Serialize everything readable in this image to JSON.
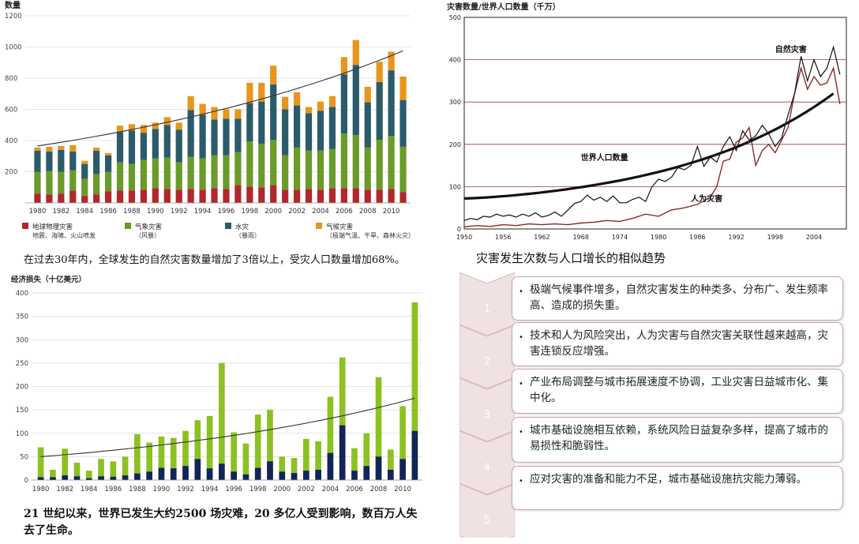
{
  "chart_a": {
    "ylabel": "数量",
    "yticks": [
      200,
      400,
      600,
      800,
      1000,
      1200
    ],
    "ylim": [
      0,
      1200
    ],
    "years": [
      1980,
      1981,
      1982,
      1983,
      1984,
      1985,
      1986,
      1987,
      1988,
      1989,
      1990,
      1991,
      1992,
      1993,
      1994,
      1995,
      1996,
      1997,
      1998,
      1999,
      2000,
      2001,
      2002,
      2003,
      2004,
      2005,
      2006,
      2007,
      2008,
      2009,
      2010,
      2011
    ],
    "xticks": [
      "1980",
      "1982",
      "1984",
      "1986",
      "1988",
      "1990",
      "1992",
      "1994",
      "1996",
      "1998",
      "2000",
      "2002",
      "2004",
      "2006",
      "2008",
      "2010"
    ],
    "colors": {
      "geo": "#b3262c",
      "met": "#6a9a28",
      "hyd": "#2b5b6b",
      "cli": "#e8951e"
    },
    "series": {
      "geo": [
        60,
        55,
        60,
        80,
        45,
        55,
        75,
        80,
        80,
        85,
        95,
        90,
        85,
        90,
        85,
        95,
        90,
        115,
        105,
        100,
        115,
        85,
        85,
        90,
        85,
        95,
        95,
        95,
        85,
        85,
        90,
        70
      ],
      "met": [
        140,
        150,
        140,
        130,
        110,
        130,
        125,
        180,
        170,
        190,
        190,
        200,
        175,
        205,
        200,
        210,
        215,
        210,
        290,
        280,
        290,
        220,
        270,
        245,
        250,
        250,
        350,
        340,
        270,
        320,
        340,
        290
      ],
      "hyd": [
        135,
        125,
        140,
        120,
        95,
        150,
        105,
        195,
        215,
        175,
        190,
        210,
        210,
        300,
        280,
        230,
        235,
        215,
        245,
        270,
        355,
        295,
        270,
        240,
        255,
        270,
        380,
        450,
        290,
        370,
        420,
        300
      ],
      "cli": [
        20,
        30,
        25,
        40,
        20,
        20,
        15,
        40,
        40,
        50,
        40,
        50,
        45,
        90,
        70,
        80,
        60,
        60,
        130,
        120,
        120,
        80,
        85,
        40,
        60,
        70,
        110,
        160,
        100,
        130,
        120,
        150
      ]
    },
    "trend": [
      365,
      975
    ],
    "legend": [
      {
        "key": "geo",
        "name": "地球物理灾害",
        "sub": "地震、海啸、火山喷发"
      },
      {
        "key": "met",
        "name": "气象灾害",
        "sub": "（风暴）"
      },
      {
        "key": "hyd",
        "name": "水灾",
        "sub": "（暴雨）"
      },
      {
        "key": "cli",
        "name": "气候灾害",
        "sub": "（极端气温、干旱、森林火灾）"
      }
    ],
    "caption": "在过去30年内，全球发生的自然灾害数量增加了3倍以上，受灾人口数量增加68%。"
  },
  "chart_b": {
    "title": "灾害数量/世界人口数量（千万）",
    "yticks": [
      0,
      100,
      200,
      300,
      400,
      500
    ],
    "ylim": [
      0,
      500
    ],
    "xticks": [
      "1950",
      "1956",
      "1962",
      "1968",
      "1974",
      "1980",
      "1986",
      "1992",
      "1998",
      "2004"
    ],
    "xlim": [
      1950,
      2009
    ],
    "colors": {
      "natural": "#111111",
      "human": "#8b2a2a",
      "pop": "#111111"
    },
    "natural": [
      [
        1950,
        20
      ],
      [
        1951,
        25
      ],
      [
        1952,
        22
      ],
      [
        1953,
        30
      ],
      [
        1954,
        28
      ],
      [
        1955,
        35
      ],
      [
        1956,
        30
      ],
      [
        1957,
        33
      ],
      [
        1958,
        28
      ],
      [
        1959,
        35
      ],
      [
        1960,
        30
      ],
      [
        1961,
        38
      ],
      [
        1962,
        28
      ],
      [
        1963,
        32
      ],
      [
        1964,
        40
      ],
      [
        1965,
        30
      ],
      [
        1966,
        45
      ],
      [
        1967,
        60
      ],
      [
        1968,
        65
      ],
      [
        1969,
        80
      ],
      [
        1970,
        68
      ],
      [
        1971,
        75
      ],
      [
        1972,
        65
      ],
      [
        1973,
        78
      ],
      [
        1974,
        62
      ],
      [
        1975,
        62
      ],
      [
        1976,
        70
      ],
      [
        1977,
        75
      ],
      [
        1978,
        65
      ],
      [
        1979,
        100
      ],
      [
        1980,
        118
      ],
      [
        1981,
        112
      ],
      [
        1982,
        122
      ],
      [
        1983,
        145
      ],
      [
        1984,
        140
      ],
      [
        1985,
        150
      ],
      [
        1986,
        195
      ],
      [
        1987,
        148
      ],
      [
        1988,
        170
      ],
      [
        1989,
        158
      ],
      [
        1990,
        195
      ],
      [
        1991,
        218
      ],
      [
        1992,
        185
      ],
      [
        1993,
        232
      ],
      [
        1994,
        210
      ],
      [
        1995,
        220
      ],
      [
        1996,
        245
      ],
      [
        1997,
        225
      ],
      [
        1998,
        195
      ],
      [
        1999,
        215
      ],
      [
        2000,
        270
      ],
      [
        2001,
        320
      ],
      [
        2002,
        408
      ],
      [
        2003,
        350
      ],
      [
        2004,
        400
      ],
      [
        2005,
        360
      ],
      [
        2006,
        380
      ],
      [
        2007,
        430
      ],
      [
        2008,
        365
      ]
    ],
    "human": [
      [
        1950,
        5
      ],
      [
        1952,
        8
      ],
      [
        1954,
        6
      ],
      [
        1956,
        10
      ],
      [
        1958,
        8
      ],
      [
        1960,
        12
      ],
      [
        1962,
        10
      ],
      [
        1964,
        12
      ],
      [
        1966,
        10
      ],
      [
        1968,
        14
      ],
      [
        1970,
        16
      ],
      [
        1972,
        20
      ],
      [
        1974,
        18
      ],
      [
        1976,
        25
      ],
      [
        1978,
        35
      ],
      [
        1980,
        30
      ],
      [
        1982,
        45
      ],
      [
        1984,
        50
      ],
      [
        1986,
        58
      ],
      [
        1988,
        75
      ],
      [
        1989,
        100
      ],
      [
        1990,
        160
      ],
      [
        1991,
        165
      ],
      [
        1992,
        205
      ],
      [
        1993,
        215
      ],
      [
        1994,
        240
      ],
      [
        1995,
        150
      ],
      [
        1996,
        185
      ],
      [
        1997,
        200
      ],
      [
        1998,
        180
      ],
      [
        1999,
        210
      ],
      [
        2000,
        240
      ],
      [
        2001,
        320
      ],
      [
        2002,
        380
      ],
      [
        2003,
        330
      ],
      [
        2004,
        360
      ],
      [
        2005,
        340
      ],
      [
        2006,
        345
      ],
      [
        2007,
        380
      ],
      [
        2008,
        295
      ]
    ],
    "pop": [
      [
        1950,
        72
      ],
      [
        1956,
        85
      ],
      [
        1962,
        100
      ],
      [
        1968,
        118
      ],
      [
        1974,
        140
      ],
      [
        1980,
        160
      ],
      [
        1986,
        185
      ],
      [
        1992,
        215
      ],
      [
        1998,
        245
      ],
      [
        2004,
        285
      ],
      [
        2007,
        320
      ]
    ],
    "label_natural": "自然灾害",
    "label_pop": "世界人口数量",
    "label_human": "人为灾害",
    "caption": "灾害发生次数与人口增长的相似趋势"
  },
  "chart_c": {
    "ylabel": "经济损失（十亿美元）",
    "yticks": [
      0,
      50,
      100,
      150,
      200,
      250,
      300,
      350,
      400
    ],
    "ylim": [
      0,
      400
    ],
    "years": [
      1980,
      1981,
      1982,
      1983,
      1984,
      1985,
      1986,
      1987,
      1988,
      1989,
      1990,
      1991,
      1992,
      1993,
      1994,
      1995,
      1996,
      1997,
      1998,
      1999,
      2000,
      2001,
      2002,
      2003,
      2004,
      2005,
      2006,
      2007,
      2008,
      2009,
      2010,
      2011
    ],
    "xticks": [
      "1980",
      "1982",
      "1984",
      "1986",
      "1988",
      "1990",
      "1992",
      "1994",
      "1996",
      "1998",
      "2000",
      "2002",
      "2004",
      "2006",
      "2008",
      "2010"
    ],
    "colors": {
      "total": "#8dc021",
      "insured": "#14235a"
    },
    "total": [
      70,
      22,
      67,
      37,
      20,
      45,
      40,
      50,
      98,
      80,
      93,
      90,
      105,
      128,
      137,
      250,
      102,
      78,
      140,
      150,
      50,
      47,
      88,
      83,
      178,
      262,
      68,
      100,
      220,
      65,
      158,
      380
    ],
    "insured": [
      6,
      6,
      10,
      8,
      4,
      8,
      7,
      10,
      14,
      18,
      26,
      25,
      30,
      45,
      25,
      35,
      18,
      12,
      26,
      40,
      18,
      15,
      20,
      22,
      58,
      117,
      20,
      30,
      50,
      22,
      45,
      105
    ],
    "trend": [
      50,
      175
    ],
    "caption": "21 世纪以来，世界已发生大约2500 场灾难，20 多亿人受到影响，数百万人失去了生命。"
  },
  "steps": [
    {
      "num": "1",
      "text": "极端气候事件增多，自然灾害发生的种类多、分布广、发生频率高、造成的损失重。"
    },
    {
      "num": "2",
      "text": "技术和人为风险突出，人为灾害与自然灾害关联性越来越高，灾害连锁反应增强。"
    },
    {
      "num": "3",
      "text": "产业布局调整与城市拓展速度不协调，工业灾害日益城市化、集中化。"
    },
    {
      "num": "4",
      "text": "城市基础设施相互依赖，系统风险日益复杂多样，提高了城市的易损性和脆弱性。"
    },
    {
      "num": "5",
      "text": "应对灾害的准备和能力不足，城市基础设施抗灾能力薄弱。"
    }
  ],
  "step_colors": {
    "chevron": "#f0e2e3",
    "chevron_edge": "#d8b8ba",
    "num": "#ffffff"
  }
}
